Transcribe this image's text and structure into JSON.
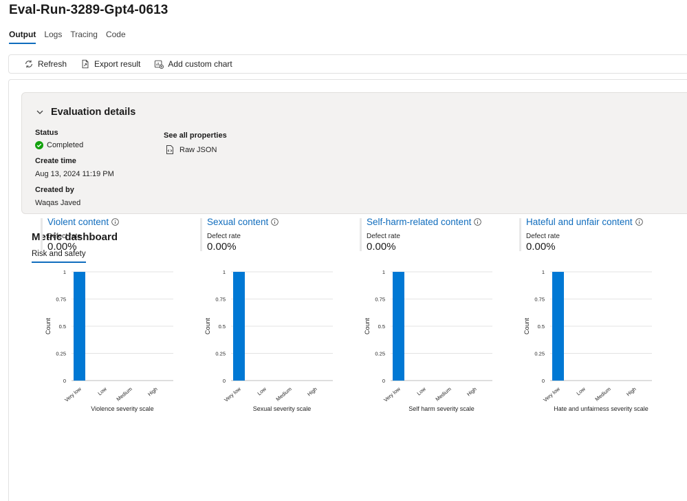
{
  "page": {
    "title": "Eval-Run-3289-Gpt4-0613"
  },
  "tabs": [
    {
      "label": "Output",
      "active": true
    },
    {
      "label": "Logs",
      "active": false
    },
    {
      "label": "Tracing",
      "active": false
    },
    {
      "label": "Code",
      "active": false
    }
  ],
  "toolbar": {
    "refresh_label": "Refresh",
    "export_label": "Export result",
    "add_chart_label": "Add custom chart"
  },
  "evaluation": {
    "header": "Evaluation details",
    "status_label": "Status",
    "status_value": "Completed",
    "create_time_label": "Create time",
    "create_time_value": "Aug 13, 2024 11:19 PM",
    "created_by_label": "Created by",
    "created_by_value": "Waqas Javed",
    "properties_label": "See all properties",
    "raw_json_label": "Raw JSON"
  },
  "dashboard": {
    "title": "Metric dashboard",
    "subtab": "Risk and safety"
  },
  "colors": {
    "accent": "#0f6cbd",
    "bar": "#0078d4",
    "success": "#13a10e"
  },
  "chart_data": [
    {
      "type": "bar",
      "title": "Violent content",
      "metric_label": "Defect rate",
      "metric_value": "0.00%",
      "categories": [
        "Very low",
        "Low",
        "Medium",
        "High"
      ],
      "values": [
        1,
        0,
        0,
        0
      ],
      "yticks": [
        "0",
        "0.25",
        "0.5",
        "0.75",
        "1"
      ],
      "xlabel": "Violence severity scale",
      "ylabel": "Count",
      "ylim": [
        0,
        1
      ]
    },
    {
      "type": "bar",
      "title": "Sexual content",
      "metric_label": "Defect rate",
      "metric_value": "0.00%",
      "categories": [
        "Very low",
        "Low",
        "Medium",
        "High"
      ],
      "values": [
        1,
        0,
        0,
        0
      ],
      "yticks": [
        "0",
        "0.25",
        "0.5",
        "0.75",
        "1"
      ],
      "xlabel": "Sexual severity scale",
      "ylabel": "Count",
      "ylim": [
        0,
        1
      ]
    },
    {
      "type": "bar",
      "title": "Self-harm-related content",
      "metric_label": "Defect rate",
      "metric_value": "0.00%",
      "categories": [
        "Very low",
        "Low",
        "Medium",
        "High"
      ],
      "values": [
        1,
        0,
        0,
        0
      ],
      "yticks": [
        "0",
        "0.25",
        "0.5",
        "0.75",
        "1"
      ],
      "xlabel": "Self harm severity scale",
      "ylabel": "Count",
      "ylim": [
        0,
        1
      ]
    },
    {
      "type": "bar",
      "title": "Hateful and unfair content",
      "metric_label": "Defect rate",
      "metric_value": "0.00%",
      "categories": [
        "Very low",
        "Low",
        "Medium",
        "High"
      ],
      "values": [
        1,
        0,
        0,
        0
      ],
      "yticks": [
        "0",
        "0.25",
        "0.5",
        "0.75",
        "1"
      ],
      "xlabel": "Hate and unfairness severity scale",
      "ylabel": "Count",
      "ylim": [
        0,
        1
      ]
    }
  ]
}
